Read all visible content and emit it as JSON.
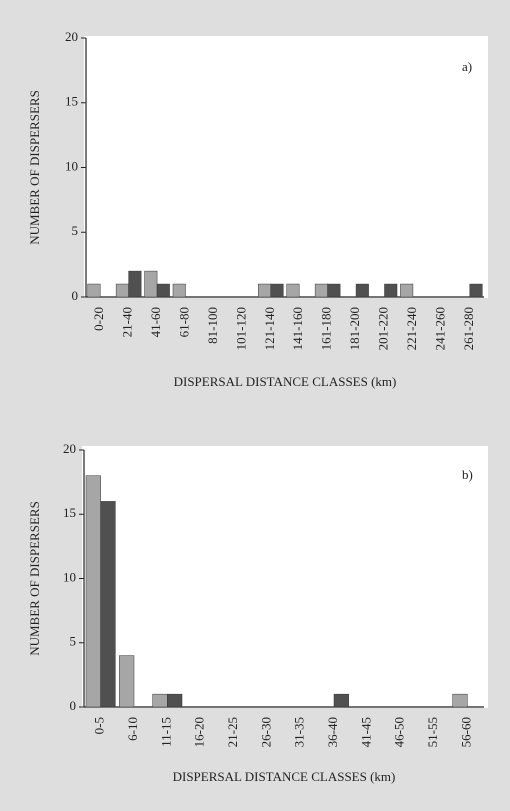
{
  "chart_data": [
    {
      "type": "bar",
      "annotation": "a)",
      "ylabel": "NUMBER OF DISPERSERS",
      "xlabel": "DISPERSAL DISTANCE CLASSES (km)",
      "categories": [
        "0-20",
        "21-40",
        "41-60",
        "61-80",
        "81-100",
        "101-120",
        "121-140",
        "141-160",
        "161-180",
        "181-200",
        "201-220",
        "221-240",
        "241-260",
        "261-280"
      ],
      "series": [
        {
          "color": "#a6a6a6",
          "values": [
            1,
            1,
            2,
            1,
            0,
            0,
            1,
            1,
            1,
            0,
            0,
            1,
            0,
            0
          ]
        },
        {
          "color": "#505050",
          "values": [
            0,
            2,
            1,
            0,
            0,
            0,
            1,
            0,
            1,
            1,
            1,
            0,
            0,
            1
          ]
        }
      ],
      "ylim": [
        0,
        20
      ],
      "yticks": [
        0,
        5,
        10,
        15,
        20
      ],
      "grid": false
    },
    {
      "type": "bar",
      "annotation": "b)",
      "ylabel": "NUMBER OF DISPERSERS",
      "xlabel": "DISPERSAL DISTANCE CLASSES (km)",
      "categories": [
        "0-5",
        "6-10",
        "11-15",
        "16-20",
        "21-25",
        "26-30",
        "31-35",
        "36-40",
        "41-45",
        "46-50",
        "51-55",
        "56-60"
      ],
      "series": [
        {
          "color": "#a6a6a6",
          "values": [
            18,
            4,
            1,
            0,
            0,
            0,
            0,
            0,
            0,
            0,
            0,
            1
          ]
        },
        {
          "color": "#505050",
          "values": [
            16,
            0,
            1,
            0,
            0,
            0,
            0,
            1,
            0,
            0,
            0,
            0
          ]
        }
      ],
      "ylim": [
        0,
        20
      ],
      "yticks": [
        0,
        5,
        10,
        15,
        20
      ],
      "grid": false
    }
  ]
}
